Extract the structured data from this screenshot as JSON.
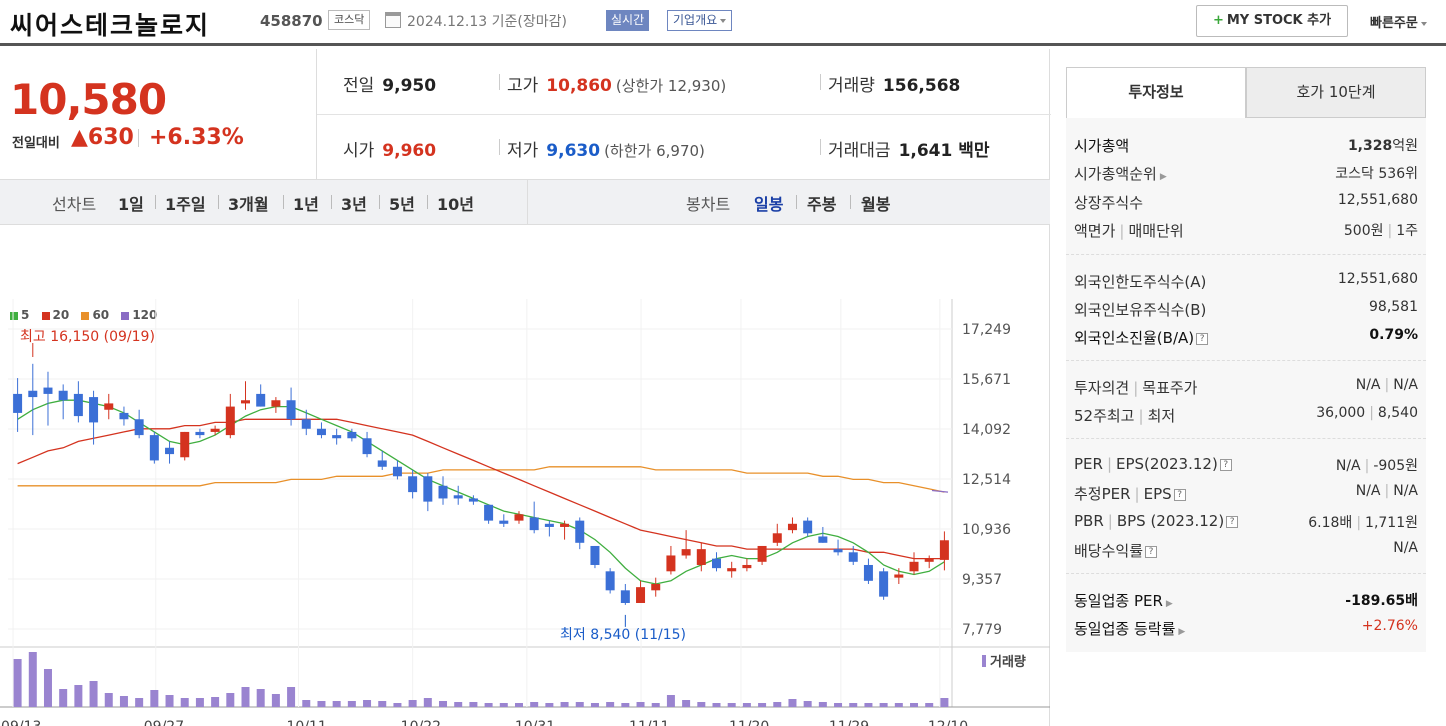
{
  "header": {
    "name": "씨어스테크놀로지",
    "code": "458870",
    "market": "코스닥",
    "date": "2024.12.13 기준(장마감)",
    "realtime": "실시간",
    "company": "기업개요",
    "mystock": "MY STOCK 추가",
    "quick": "빠른주문"
  },
  "price": {
    "current": "10,580",
    "compare_label": "전일대비",
    "change": "▲630",
    "rate": "+6.33%"
  },
  "quote": {
    "prev_label": "전일",
    "prev": "9,950",
    "high_label": "고가",
    "high": "10,860",
    "upper": "(상한가 12,930)",
    "volume_label": "거래량",
    "volume": "156,568",
    "open_label": "시가",
    "open": "9,960",
    "low_label": "저가",
    "low": "9,630",
    "lower": "(하한가 6,970)",
    "amount_label": "거래대금",
    "amount": "1,641",
    "amount_unit": "백만"
  },
  "periods": {
    "line_label": "선차트",
    "items": [
      "1일",
      "1주일",
      "3개월",
      "1년",
      "3년",
      "5년",
      "10년"
    ],
    "candle_label": "봉차트",
    "candle_items": [
      "일봉",
      "주봉",
      "월봉"
    ],
    "candle_active": "일봉"
  },
  "legend": [
    {
      "label": "5",
      "color": "#3fae3f"
    },
    {
      "label": "20",
      "color": "#d4331f"
    },
    {
      "label": "60",
      "color": "#e8902a"
    },
    {
      "label": "120",
      "color": "#8a6cc4"
    }
  ],
  "chart_data": {
    "type": "candlestick",
    "y_ticks": [
      "17,249",
      "15,671",
      "14,092",
      "12,514",
      "10,936",
      "9,357",
      "7,779"
    ],
    "ylim": [
      7779,
      17249
    ],
    "x_ticks": [
      "09/13",
      "09/27",
      "10/11",
      "10/22",
      "10/31",
      "11/11",
      "11/20",
      "11/29",
      "12/10"
    ],
    "high_annotation": "최고 16,150 (09/19)",
    "low_annotation": "최저 8,540 (11/15)",
    "volume_label": "거래량",
    "candles": [
      [
        15200,
        15700,
        14000,
        14600
      ],
      [
        15300,
        16150,
        13900,
        15100
      ],
      [
        15400,
        15900,
        14200,
        15200
      ],
      [
        15300,
        15500,
        14400,
        15000
      ],
      [
        15200,
        15600,
        14300,
        14500
      ],
      [
        15100,
        15300,
        13600,
        14300
      ],
      [
        14700,
        15200,
        14400,
        14900
      ],
      [
        14600,
        14800,
        14200,
        14400
      ],
      [
        14400,
        14700,
        13800,
        13900
      ],
      [
        13900,
        14000,
        13000,
        13100
      ],
      [
        13500,
        13700,
        13000,
        13300
      ],
      [
        13200,
        14000,
        13100,
        14000
      ],
      [
        14000,
        14100,
        13800,
        13900
      ],
      [
        14000,
        14200,
        13900,
        14100
      ],
      [
        13900,
        15200,
        13800,
        14800
      ],
      [
        14900,
        15600,
        14700,
        15000
      ],
      [
        15200,
        15500,
        14800,
        14800
      ],
      [
        14800,
        15100,
        14600,
        15000
      ],
      [
        15000,
        15400,
        14200,
        14400
      ],
      [
        14400,
        14700,
        13900,
        14100
      ],
      [
        14100,
        14300,
        13800,
        13900
      ],
      [
        13900,
        14100,
        13600,
        13800
      ],
      [
        14000,
        14100,
        13700,
        13800
      ],
      [
        13800,
        14000,
        13200,
        13300
      ],
      [
        13100,
        13400,
        12800,
        12900
      ],
      [
        12900,
        13100,
        12500,
        12600
      ],
      [
        12600,
        12800,
        11900,
        12100
      ],
      [
        12600,
        12700,
        11500,
        11800
      ],
      [
        12300,
        12600,
        11700,
        11900
      ],
      [
        12000,
        12300,
        11700,
        11900
      ],
      [
        11900,
        12000,
        11700,
        11800
      ],
      [
        11700,
        11700,
        11100,
        11200
      ],
      [
        11200,
        11400,
        11000,
        11100
      ],
      [
        11200,
        11500,
        11100,
        11400
      ],
      [
        11300,
        11800,
        10800,
        10900
      ],
      [
        11100,
        11200,
        10700,
        11000
      ],
      [
        11000,
        11200,
        10600,
        11100
      ],
      [
        11200,
        11300,
        10300,
        10500
      ],
      [
        10400,
        10400,
        9700,
        9800
      ],
      [
        9600,
        9700,
        8900,
        9000
      ],
      [
        9000,
        9200,
        8540,
        8600
      ],
      [
        8600,
        9300,
        8600,
        9100
      ],
      [
        9000,
        9400,
        8800,
        9200
      ],
      [
        9600,
        10400,
        9500,
        10100
      ],
      [
        10100,
        10900,
        10000,
        10300
      ],
      [
        9800,
        10500,
        9600,
        10300
      ],
      [
        10000,
        10200,
        9600,
        9700
      ],
      [
        9600,
        9900,
        9400,
        9700
      ],
      [
        9700,
        10000,
        9600,
        9800
      ],
      [
        9900,
        10400,
        9800,
        10400
      ],
      [
        10500,
        11100,
        10400,
        10800
      ],
      [
        10900,
        11300,
        10800,
        11100
      ],
      [
        11200,
        11300,
        10700,
        10800
      ],
      [
        10700,
        11000,
        10500,
        10500
      ],
      [
        10300,
        10600,
        10100,
        10200
      ],
      [
        10200,
        10400,
        9800,
        9900
      ],
      [
        9800,
        10000,
        9200,
        9300
      ],
      [
        9600,
        9700,
        8700,
        8800
      ],
      [
        9400,
        9700,
        9200,
        9500
      ],
      [
        9600,
        10200,
        9500,
        9900
      ],
      [
        9900,
        10100,
        9700,
        10000
      ],
      [
        9960,
        10860,
        9630,
        10580
      ]
    ],
    "ma5": [
      14400,
      14700,
      14900,
      15000,
      15000,
      14900,
      14800,
      14600,
      14300,
      14000,
      13700,
      13600,
      13700,
      13900,
      14200,
      14500,
      14700,
      14800,
      14800,
      14600,
      14400,
      14200,
      14000,
      13700,
      13400,
      13100,
      12800,
      12500,
      12300,
      12100,
      11900,
      11700,
      11500,
      11400,
      11300,
      11200,
      11100,
      10900,
      10600,
      10200,
      9700,
      9300,
      9200,
      9300,
      9600,
      9800,
      10000,
      10100,
      10000,
      10000,
      10200,
      10500,
      10700,
      10800,
      10700,
      10500,
      10200,
      9800,
      9600,
      9500,
      9600,
      9900
    ],
    "ma20": [
      13000,
      13200,
      13400,
      13500,
      13700,
      13800,
      13900,
      14000,
      14100,
      14100,
      14100,
      14200,
      14200,
      14300,
      14300,
      14400,
      14400,
      14400,
      14400,
      14400,
      14400,
      14400,
      14300,
      14200,
      14100,
      14000,
      13900,
      13700,
      13500,
      13300,
      13100,
      12900,
      12700,
      12500,
      12300,
      12100,
      11900,
      11700,
      11500,
      11300,
      11100,
      10900,
      10800,
      10700,
      10600,
      10500,
      10400,
      10400,
      10300,
      10300,
      10300,
      10300,
      10300,
      10300,
      10300,
      10300,
      10200,
      10200,
      10100,
      10000,
      10000,
      10000
    ],
    "ma60": [
      12300,
      12300,
      12300,
      12300,
      12300,
      12300,
      12300,
      12300,
      12300,
      12300,
      12300,
      12300,
      12300,
      12400,
      12400,
      12400,
      12400,
      12400,
      12500,
      12500,
      12500,
      12600,
      12600,
      12600,
      12600,
      12700,
      12700,
      12700,
      12800,
      12800,
      12800,
      12800,
      12800,
      12800,
      12800,
      12900,
      12900,
      12900,
      12900,
      12900,
      12900,
      12900,
      12800,
      12800,
      12800,
      12800,
      12800,
      12800,
      12700,
      12700,
      12700,
      12700,
      12700,
      12600,
      12600,
      12500,
      12500,
      12400,
      12400,
      12300,
      12200,
      12100
    ],
    "volume": [
      48,
      55,
      38,
      18,
      22,
      26,
      14,
      11,
      9,
      17,
      12,
      9,
      9,
      10,
      14,
      20,
      18,
      13,
      20,
      7,
      6,
      6,
      6,
      7,
      6,
      4,
      7,
      9,
      6,
      5,
      5,
      4,
      4,
      4,
      5,
      4,
      5,
      5,
      4,
      5,
      4,
      5,
      4,
      12,
      7,
      5,
      4,
      4,
      4,
      4,
      5,
      8,
      6,
      5,
      4,
      4,
      4,
      4,
      4,
      4,
      4,
      9
    ]
  },
  "side": {
    "tab_info": "투자정보",
    "tab_ask": "호가 10단계",
    "market_cap_k": "시가총액",
    "market_cap_v": "1,328",
    "market_cap_unit": "억원",
    "cap_rank_k": "시가총액순위",
    "cap_rank_v": "코스닥 536위",
    "shares_k": "상장주식수",
    "shares_v": "12,551,680",
    "face_k": "액면가",
    "face_k2": "매매단위",
    "face_v": "500원",
    "face_v2": "1주",
    "foreign_limit_k": "외국인한도주식수(A)",
    "foreign_limit_v": "12,551,680",
    "foreign_hold_k": "외국인보유주식수(B)",
    "foreign_hold_v": "98,581",
    "foreign_rate_k": "외국인소진율(B/A)",
    "foreign_rate_v": "0.79%",
    "opinion_k": "투자의견",
    "opinion_k2": "목표주가",
    "opinion_v": "N/A",
    "opinion_v2": "N/A",
    "w52_k": "52주최고",
    "w52_k2": "최저",
    "w52_v": "36,000",
    "w52_v2": "8,540",
    "per_k": "PER",
    "per_k2": "EPS(2023.12)",
    "per_v": "N/A",
    "per_v2": "-905원",
    "eper_k": "추정PER",
    "eper_k2": "EPS",
    "eper_v": "N/A",
    "eper_v2": "N/A",
    "pbr_k": "PBR",
    "pbr_k2": "BPS (2023.12)",
    "pbr_v": "6.18배",
    "pbr_v2": "1,711원",
    "div_k": "배당수익률",
    "div_v": "N/A",
    "sector_per_k": "동일업종 PER",
    "sector_per_v": "-189.65배",
    "sector_rate_k": "동일업종 등락률",
    "sector_rate_v": "+2.76%"
  }
}
